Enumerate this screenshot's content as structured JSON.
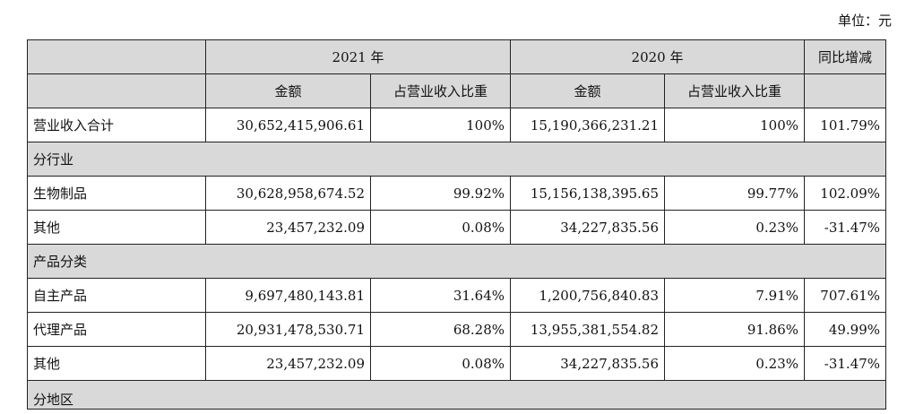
{
  "unit_note": "单位：元",
  "header": {
    "year_2021": "2021 年",
    "year_2020": "2020 年",
    "yoy": "同比增减",
    "amount": "金额",
    "share": "占营业收入比重"
  },
  "rows": {
    "total": {
      "label": "营业收入合计",
      "a2021": "30,652,415,906.61",
      "s2021": "100%",
      "a2020": "15,190,366,231.21",
      "s2020": "100%",
      "yoy": "101.79%"
    },
    "sec_industry": "分行业",
    "bio": {
      "label": "生物制品",
      "a2021": "30,628,958,674.52",
      "s2021": "99.92%",
      "a2020": "15,156,138,395.65",
      "s2020": "99.77%",
      "yoy": "102.09%"
    },
    "other1": {
      "label": "其他",
      "a2021": "23,457,232.09",
      "s2021": "0.08%",
      "a2020": "34,227,835.56",
      "s2020": "0.23%",
      "yoy": "-31.47%"
    },
    "sec_product": "产品分类",
    "own": {
      "label": "自主产品",
      "a2021": "9,697,480,143.81",
      "s2021": "31.64%",
      "a2020": "1,200,756,840.83",
      "s2020": "7.91%",
      "yoy": "707.61%"
    },
    "agency": {
      "label": "代理产品",
      "a2021": "20,931,478,530.71",
      "s2021": "68.28%",
      "a2020": "13,955,381,554.82",
      "s2020": "91.86%",
      "yoy": "49.99%"
    },
    "other2": {
      "label": "其他",
      "a2021": "23,457,232.09",
      "s2021": "0.08%",
      "a2020": "34,227,835.56",
      "s2020": "0.23%",
      "yoy": "-31.47%"
    },
    "sec_region": "分地区"
  }
}
